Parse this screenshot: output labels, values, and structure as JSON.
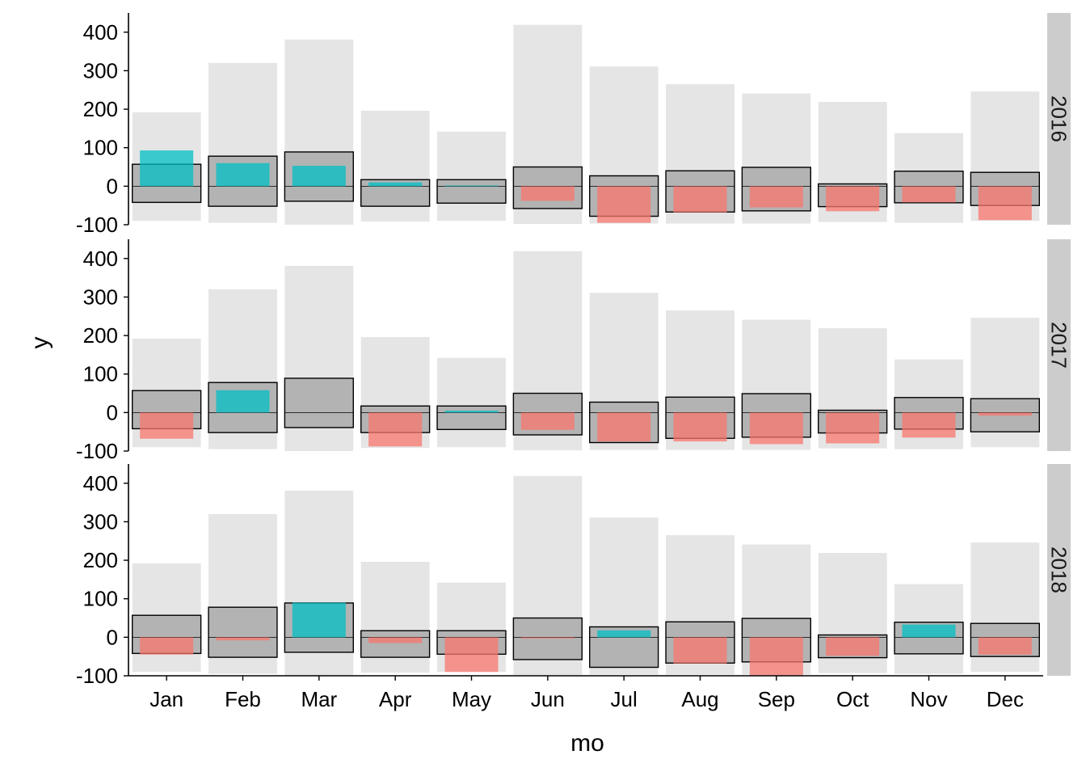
{
  "chart_data": {
    "type": "bar",
    "layout": "faceted rows (one panel per year), overlaid bars",
    "xlabel": "mo",
    "ylabel": "y",
    "ylim": [
      -100,
      450
    ],
    "yticks": [
      -100,
      0,
      100,
      200,
      300,
      400
    ],
    "grid": false,
    "legend": "none",
    "categories": [
      "Jan",
      "Feb",
      "Mar",
      "Apr",
      "May",
      "Jun",
      "Jul",
      "Aug",
      "Sep",
      "Oct",
      "Nov",
      "Dec"
    ],
    "colors": {
      "range": "#e5e5e5",
      "band": "#b3b3b3",
      "positive": "#00bfc4",
      "negative": "#f8766d",
      "strip": "#cccccc"
    },
    "range_bars": {
      "max": [
        192,
        320,
        381,
        196,
        142,
        419,
        311,
        265,
        241,
        219,
        138,
        246
      ],
      "min": [
        -90,
        -95,
        -100,
        -92,
        -90,
        -98,
        -97,
        -97,
        -97,
        -93,
        -95,
        -90
      ]
    },
    "band_bars": {
      "high": [
        57,
        78,
        89,
        17,
        17,
        50,
        27,
        40,
        49,
        6,
        39,
        36
      ],
      "low": [
        -42,
        -52,
        -39,
        -52,
        -44,
        -58,
        -78,
        -67,
        -64,
        -53,
        -43,
        -50
      ]
    },
    "panels": [
      {
        "label": "2016",
        "values": [
          93,
          60,
          53,
          10,
          2,
          -38,
          -95,
          -68,
          -55,
          -65,
          -42,
          -88
        ]
      },
      {
        "label": "2017",
        "values": [
          -68,
          58,
          0,
          -88,
          5,
          -45,
          -75,
          -75,
          -82,
          -80,
          -65,
          -8
        ]
      },
      {
        "label": "2018",
        "values": [
          -45,
          -8,
          90,
          -15,
          -90,
          -3,
          18,
          -68,
          -100,
          -48,
          33,
          -45
        ]
      }
    ]
  }
}
